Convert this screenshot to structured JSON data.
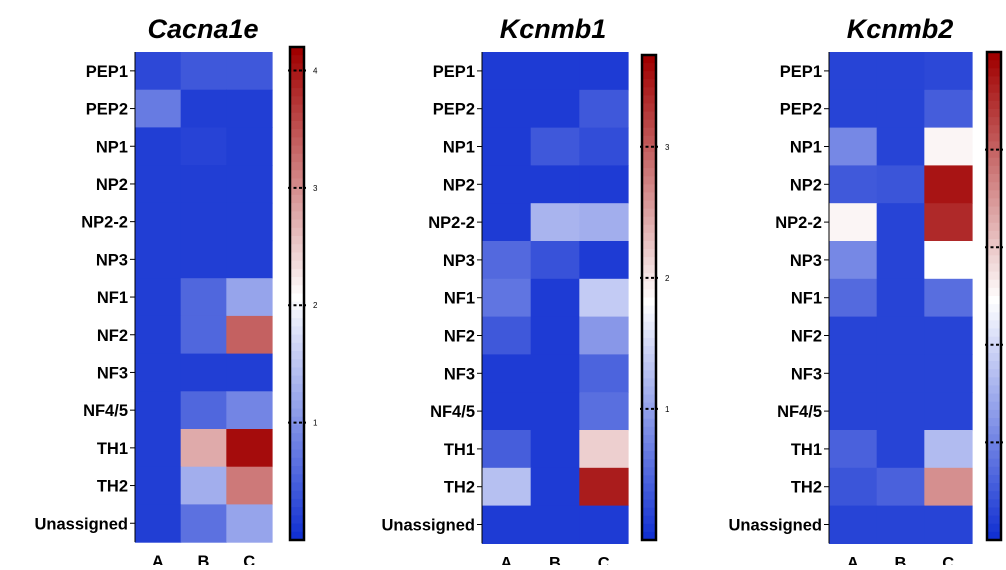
{
  "chart_data": [
    {
      "type": "heatmap",
      "title": "Cacna1e",
      "rows": [
        "PEP1",
        "PEP2",
        "NP1",
        "NP2",
        "NP2-2",
        "NP3",
        "NF1",
        "NF2",
        "NF3",
        "NF4/5",
        "TH1",
        "TH2",
        "Unassigned"
      ],
      "columns": [
        "A",
        "B",
        "C"
      ],
      "values": [
        [
          0.3,
          0.45,
          0.45
        ],
        [
          0.8,
          0.2,
          0.2
        ],
        [
          0.2,
          0.25,
          0.2
        ],
        [
          0.2,
          0.2,
          0.2
        ],
        [
          0.2,
          0.2,
          0.2
        ],
        [
          0.2,
          0.2,
          0.2
        ],
        [
          0.2,
          0.6,
          1.2
        ],
        [
          0.2,
          0.6,
          3.4
        ],
        [
          0.2,
          0.2,
          0.2
        ],
        [
          0.2,
          0.6,
          0.9
        ],
        [
          0.2,
          2.8,
          4.1
        ],
        [
          0.2,
          1.3,
          3.2
        ],
        [
          0.2,
          0.7,
          1.2
        ]
      ],
      "colorbar": {
        "min": 0,
        "max": 4.2,
        "ticks": [
          1,
          2,
          3,
          4
        ]
      }
    },
    {
      "type": "heatmap",
      "title": "Kcnmb1",
      "rows": [
        "PEP1",
        "PEP2",
        "NP1",
        "NP2",
        "NP2-2",
        "NP3",
        "NF1",
        "NF2",
        "NF3",
        "NF4/5",
        "TH1",
        "TH2",
        "Unassigned"
      ],
      "columns": [
        "A",
        "B",
        "C"
      ],
      "values": [
        [
          0.15,
          0.15,
          0.15
        ],
        [
          0.15,
          0.15,
          0.4
        ],
        [
          0.15,
          0.4,
          0.3
        ],
        [
          0.15,
          0.15,
          0.15
        ],
        [
          0.15,
          1.2,
          1.15
        ],
        [
          0.55,
          0.35,
          0.15
        ],
        [
          0.65,
          0.15,
          1.4
        ],
        [
          0.4,
          0.15,
          0.95
        ],
        [
          0.15,
          0.15,
          0.5
        ],
        [
          0.15,
          0.15,
          0.6
        ],
        [
          0.45,
          0.15,
          2.2
        ],
        [
          1.3,
          0.15,
          3.5
        ],
        [
          0.15,
          0.15,
          0.15
        ]
      ],
      "colorbar": {
        "min": 0,
        "max": 3.7,
        "ticks": [
          1,
          2,
          3
        ]
      }
    },
    {
      "type": "heatmap",
      "title": "Kcnmb2",
      "rows": [
        "PEP1",
        "PEP2",
        "NP1",
        "NP2",
        "NP2-2",
        "NP3",
        "NF1",
        "NF2",
        "NF3",
        "NF4/5",
        "TH1",
        "TH2",
        "Unassigned"
      ],
      "columns": [
        "A",
        "B",
        "C"
      ],
      "values": [
        [
          0.3,
          0.3,
          0.35
        ],
        [
          0.3,
          0.3,
          0.6
        ],
        [
          1.1,
          0.3,
          2.6
        ],
        [
          0.55,
          0.5,
          4.8
        ],
        [
          2.6,
          0.3,
          4.6
        ],
        [
          1.1,
          0.3,
          2.5
        ],
        [
          0.75,
          0.3,
          0.8
        ],
        [
          0.3,
          0.3,
          0.3
        ],
        [
          0.3,
          0.3,
          0.3
        ],
        [
          0.3,
          0.3,
          0.3
        ],
        [
          0.65,
          0.3,
          1.7
        ],
        [
          0.5,
          0.65,
          3.6
        ],
        [
          0.3,
          0.3,
          0.3
        ]
      ],
      "colorbar": {
        "min": 0,
        "max": 5.0,
        "ticks": []
      }
    }
  ],
  "colors": {
    "low": "#0a2ad0",
    "mid": "#ffffff",
    "high": "#a00000"
  }
}
